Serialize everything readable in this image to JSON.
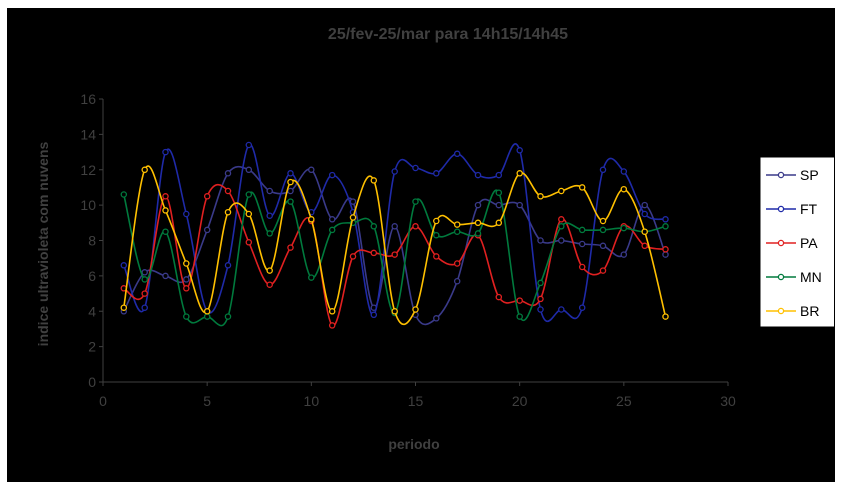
{
  "chart_data": {
    "type": "line",
    "title": "25/fev-25/mar para 14h15/14h45",
    "xlabel": "periodo",
    "ylabel": "indice ultravioleta com nuvens",
    "xlim": [
      0,
      30
    ],
    "ylim": [
      0,
      16
    ],
    "xticks": [
      0,
      5,
      10,
      15,
      20,
      25,
      30
    ],
    "yticks": [
      0,
      2,
      4,
      6,
      8,
      10,
      12,
      14,
      16
    ],
    "legend_position": "right",
    "grid": false,
    "x": [
      1,
      2,
      3,
      4,
      5,
      6,
      7,
      8,
      9,
      10,
      11,
      12,
      13,
      14,
      15,
      16,
      17,
      18,
      19,
      20,
      21,
      22,
      23,
      24,
      25,
      26,
      27
    ],
    "series": [
      {
        "name": "SP",
        "color": "#3a3a8a",
        "values": [
          4.0,
          6.2,
          6.0,
          5.8,
          8.6,
          11.8,
          12.0,
          10.8,
          10.8,
          12.0,
          9.2,
          10.2,
          4.2,
          8.8,
          3.8,
          3.6,
          5.7,
          10.0,
          10.0,
          10.0,
          8.0,
          8.0,
          7.8,
          7.7,
          7.2,
          10.0,
          7.2
        ]
      },
      {
        "name": "FT",
        "color": "#1f2aa8",
        "values": [
          6.6,
          4.2,
          13.0,
          9.5,
          4.0,
          6.6,
          13.4,
          9.4,
          11.8,
          9.6,
          11.7,
          9.6,
          3.8,
          11.9,
          12.1,
          11.8,
          12.9,
          11.7,
          11.7,
          13.1,
          4.1,
          4.1,
          4.2,
          12.0,
          11.9,
          9.5,
          9.2
        ]
      },
      {
        "name": "PA",
        "color": "#e02020",
        "values": [
          5.3,
          5.0,
          10.5,
          5.3,
          10.5,
          10.8,
          7.9,
          5.5,
          7.6,
          9.1,
          3.2,
          7.1,
          7.3,
          7.2,
          8.8,
          7.1,
          6.7,
          8.3,
          4.8,
          4.6,
          4.7,
          9.2,
          6.5,
          6.3,
          8.8,
          7.7,
          7.5
        ]
      },
      {
        "name": "MN",
        "color": "#007a3d",
        "values": [
          10.6,
          5.8,
          8.5,
          3.7,
          3.7,
          3.7,
          10.6,
          8.4,
          10.2,
          5.9,
          8.6,
          9.0,
          8.8,
          3.9,
          10.2,
          8.3,
          8.5,
          8.4,
          10.7,
          3.7,
          5.6,
          8.8,
          8.6,
          8.6,
          8.7,
          8.5,
          8.8
        ]
      },
      {
        "name": "BR",
        "color": "#ffc000",
        "values": [
          4.2,
          12.0,
          9.7,
          6.7,
          4.0,
          9.6,
          9.5,
          6.3,
          11.3,
          9.2,
          4.0,
          9.3,
          11.4,
          4.0,
          4.1,
          9.1,
          8.9,
          9.0,
          9.0,
          11.8,
          10.5,
          10.8,
          11.0,
          9.1,
          10.9,
          8.5,
          3.7
        ]
      }
    ]
  }
}
